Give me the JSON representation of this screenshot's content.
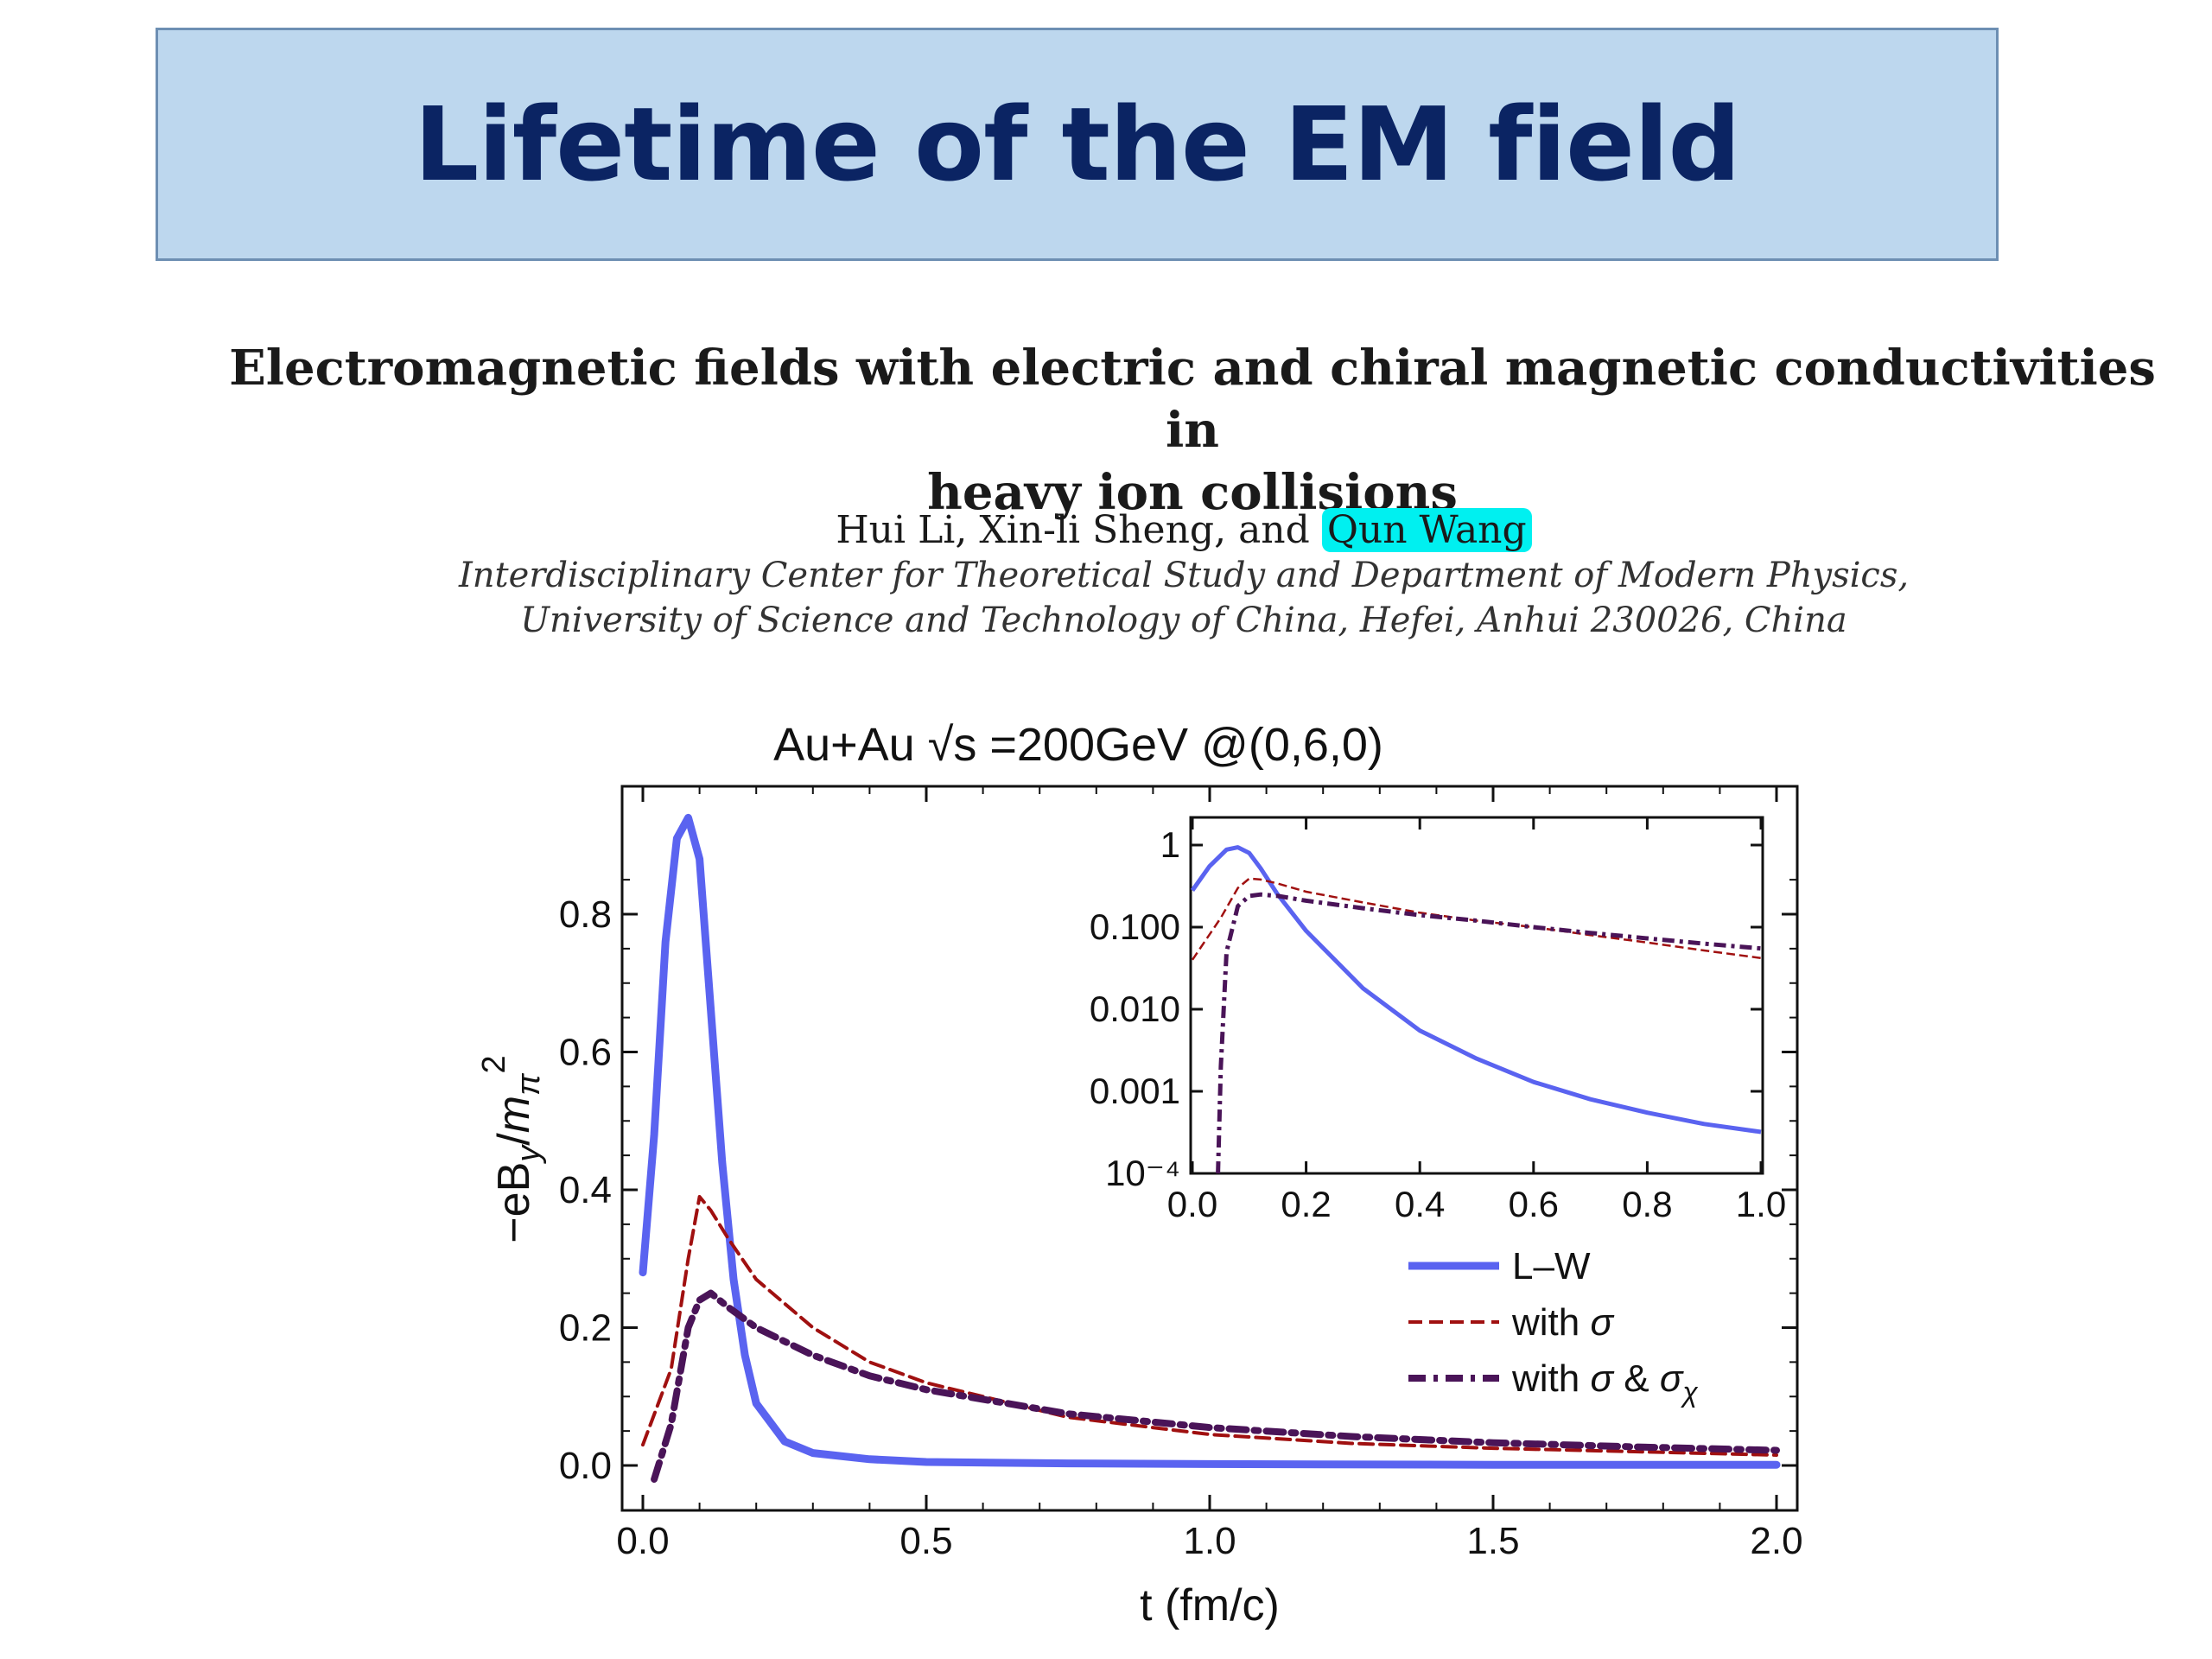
{
  "slide": {
    "title": "Lifetime of the EM field"
  },
  "paper": {
    "title_line1": "Electromagnetic fields with electric and chiral magnetic conductivities in",
    "title_line2": "heavy ion collisions",
    "authors_prefix": "Hui Li, Xin-li Sheng, and",
    "highlighted_author": "Qun Wang",
    "affiliation_line1": "Interdisciplinary Center for Theoretical Study and Department of Modern Physics,",
    "affiliation_line2": "University of Science and Technology of China, Hefei, Anhui 230026, China"
  },
  "colors": {
    "lw": "#5a63f0",
    "sigma": "#a01010",
    "sigma_chi": "#4a1458",
    "highlight": "#00f0f0"
  },
  "chart_data": [
    {
      "type": "line",
      "title": "Au+Au √s =200GeV @(0,6,0)",
      "xlabel": "t (fm/c)",
      "ylabel": "-eB_y/m_π^2",
      "xlim": [
        0,
        2.0
      ],
      "ylim": [
        -0.06,
        0.98
      ],
      "xticks": [
        "0.0",
        "0.5",
        "1.0",
        "1.5",
        "2.0"
      ],
      "yticks": [
        "0.0",
        "0.2",
        "0.4",
        "0.6",
        "0.8"
      ],
      "legend_position": "right-middle",
      "series": [
        {
          "name": "L–W",
          "style": "solid",
          "x": [
            0.0,
            0.02,
            0.04,
            0.06,
            0.08,
            0.1,
            0.12,
            0.14,
            0.16,
            0.18,
            0.2,
            0.25,
            0.3,
            0.4,
            0.5,
            0.75,
            1.0,
            1.5,
            2.0
          ],
          "y": [
            0.28,
            0.48,
            0.76,
            0.91,
            0.94,
            0.88,
            0.66,
            0.44,
            0.27,
            0.16,
            0.09,
            0.035,
            0.018,
            0.009,
            0.005,
            0.003,
            0.002,
            0.001,
            0.001
          ]
        },
        {
          "name": "with σ",
          "style": "dashed",
          "x": [
            0.0,
            0.05,
            0.08,
            0.1,
            0.12,
            0.15,
            0.2,
            0.3,
            0.4,
            0.5,
            0.75,
            1.0,
            1.25,
            1.5,
            1.75,
            2.0
          ],
          "y": [
            0.03,
            0.14,
            0.3,
            0.39,
            0.37,
            0.33,
            0.27,
            0.2,
            0.15,
            0.12,
            0.07,
            0.045,
            0.032,
            0.025,
            0.02,
            0.015
          ]
        },
        {
          "name": "with σ & σχ",
          "style": "dashdot",
          "x": [
            0.02,
            0.05,
            0.08,
            0.1,
            0.12,
            0.15,
            0.2,
            0.3,
            0.4,
            0.5,
            0.75,
            1.0,
            1.25,
            1.5,
            1.75,
            2.0
          ],
          "y": [
            -0.02,
            0.06,
            0.2,
            0.24,
            0.25,
            0.23,
            0.2,
            0.16,
            0.13,
            0.11,
            0.075,
            0.055,
            0.042,
            0.033,
            0.027,
            0.022
          ]
        }
      ]
    },
    {
      "type": "line",
      "title": "",
      "scale": "log",
      "xlim": [
        0,
        1.0
      ],
      "ylim": [
        0.0001,
        1.4
      ],
      "xticks": [
        "0.0",
        "0.2",
        "0.4",
        "0.6",
        "0.8",
        "1.0"
      ],
      "yticks": [
        "1",
        "0.100",
        "0.010",
        "0.001",
        "10⁻⁴"
      ],
      "series": [
        {
          "name": "L–W",
          "style": "solid",
          "x": [
            0.0,
            0.03,
            0.06,
            0.08,
            0.1,
            0.12,
            0.15,
            0.2,
            0.3,
            0.4,
            0.5,
            0.6,
            0.7,
            0.8,
            0.9,
            1.0
          ],
          "y": [
            0.28,
            0.55,
            0.88,
            0.94,
            0.8,
            0.52,
            0.25,
            0.09,
            0.018,
            0.0055,
            0.0025,
            0.0013,
            0.0008,
            0.00055,
            0.0004,
            0.00032
          ]
        },
        {
          "name": "with σ",
          "style": "dashed",
          "x": [
            0.0,
            0.05,
            0.08,
            0.1,
            0.12,
            0.15,
            0.2,
            0.3,
            0.4,
            0.5,
            0.6,
            0.7,
            0.8,
            0.9,
            1.0
          ],
          "y": [
            0.04,
            0.13,
            0.3,
            0.39,
            0.38,
            0.34,
            0.27,
            0.2,
            0.15,
            0.12,
            0.1,
            0.08,
            0.065,
            0.052,
            0.042
          ]
        },
        {
          "name": "with σ & σχ",
          "style": "dashdot",
          "x": [
            0.045,
            0.05,
            0.06,
            0.08,
            0.1,
            0.12,
            0.15,
            0.2,
            0.3,
            0.4,
            0.5,
            0.6,
            0.7,
            0.8,
            0.9,
            1.0
          ],
          "y": [
            0.0001,
            0.002,
            0.05,
            0.18,
            0.24,
            0.25,
            0.24,
            0.21,
            0.17,
            0.14,
            0.12,
            0.1,
            0.085,
            0.073,
            0.063,
            0.055
          ]
        }
      ]
    }
  ]
}
